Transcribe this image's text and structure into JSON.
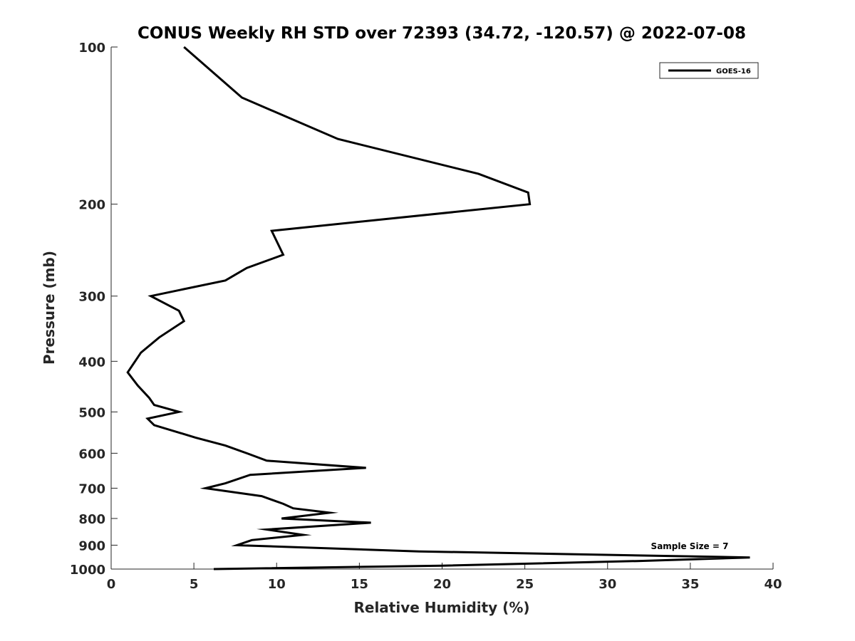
{
  "chart_data": {
    "type": "line",
    "title": "CONUS Weekly RH STD over 72393 (34.72, -120.57) @ 2022-07-08",
    "xlabel": "Relative Humidity (%)",
    "ylabel": "Pressure (mb)",
    "xlim": [
      0,
      40
    ],
    "ylim": [
      100,
      1000
    ],
    "yscale": "log",
    "yreversed": true,
    "xticks": [
      0,
      5,
      10,
      15,
      20,
      25,
      30,
      35,
      40
    ],
    "yticks": [
      100,
      200,
      300,
      400,
      500,
      600,
      700,
      800,
      900,
      1000
    ],
    "grid": false,
    "legend_position": "top-right",
    "annotation": "Sample Size = 7",
    "series": [
      {
        "name": "GOES-16",
        "color": "#000000",
        "x": [
          4.4,
          7.9,
          13.7,
          22.2,
          25.2,
          25.3,
          9.7,
          10.4,
          8.2,
          6.9,
          2.4,
          4.1,
          4.4,
          2.9,
          1.8,
          1.0,
          1.6,
          2.3,
          2.6,
          4.1,
          2.2,
          2.6,
          5.1,
          6.9,
          8.2,
          9.4,
          15.4,
          8.4,
          6.9,
          5.7,
          9.1,
          10.4,
          11.0,
          13.2,
          10.3,
          15.7,
          9.4,
          11.6,
          8.5,
          7.6,
          18.6,
          38.6,
          31.8,
          20.0,
          6.2
        ],
        "y": [
          100,
          125,
          150,
          175,
          190,
          200,
          225,
          250,
          265,
          280,
          300,
          320,
          335,
          360,
          385,
          420,
          445,
          470,
          485,
          500,
          515,
          530,
          560,
          580,
          600,
          620,
          640,
          660,
          685,
          700,
          725,
          750,
          765,
          780,
          800,
          815,
          840,
          860,
          880,
          900,
          925,
          950,
          965,
          985,
          1000
        ]
      }
    ]
  }
}
